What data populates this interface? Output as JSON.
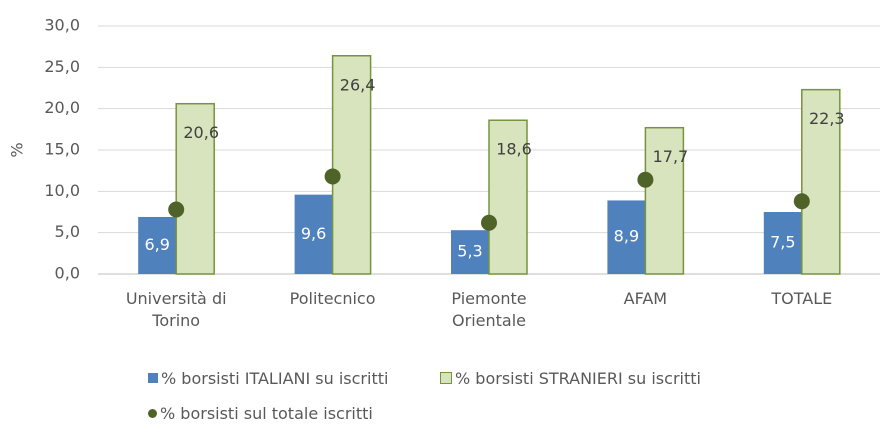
{
  "chart_data": {
    "type": "bar",
    "categories": [
      "Università di Torino",
      "Politecnico",
      "Piemonte Orientale",
      "AFAM",
      "TOTALE"
    ],
    "y_label": "%",
    "ylim": [
      0,
      30
    ],
    "yticks": [
      {
        "value": 0,
        "label": "0,0"
      },
      {
        "value": 5,
        "label": "5,0"
      },
      {
        "value": 10,
        "label": "10,0"
      },
      {
        "value": 15,
        "label": "15,0"
      },
      {
        "value": 20,
        "label": "20,0"
      },
      {
        "value": 25,
        "label": "25,0"
      },
      {
        "value": 30,
        "label": "30,0"
      }
    ],
    "grid": true,
    "series": [
      {
        "name": "% borsisti ITALIANI su iscritti",
        "color": "#4f81bd",
        "values": [
          6.9,
          9.6,
          5.3,
          8.9,
          7.5
        ],
        "value_labels": [
          "6,9",
          "9,6",
          "5,3",
          "8,9",
          "7,5"
        ]
      },
      {
        "name": "% borsisti STRANIERI su iscritti",
        "color": "#d7e4bd",
        "edge_color": "#77933c",
        "values": [
          20.6,
          26.4,
          18.6,
          17.7,
          22.3
        ],
        "value_labels": [
          "20,6",
          "26,4",
          "18,6",
          "17,7",
          "22,3"
        ]
      },
      {
        "name": "% borsisti sul totale iscritti",
        "type": "scatter",
        "color": "#4f6228",
        "values": [
          7.8,
          11.8,
          6.2,
          11.4,
          8.8
        ]
      }
    ]
  }
}
